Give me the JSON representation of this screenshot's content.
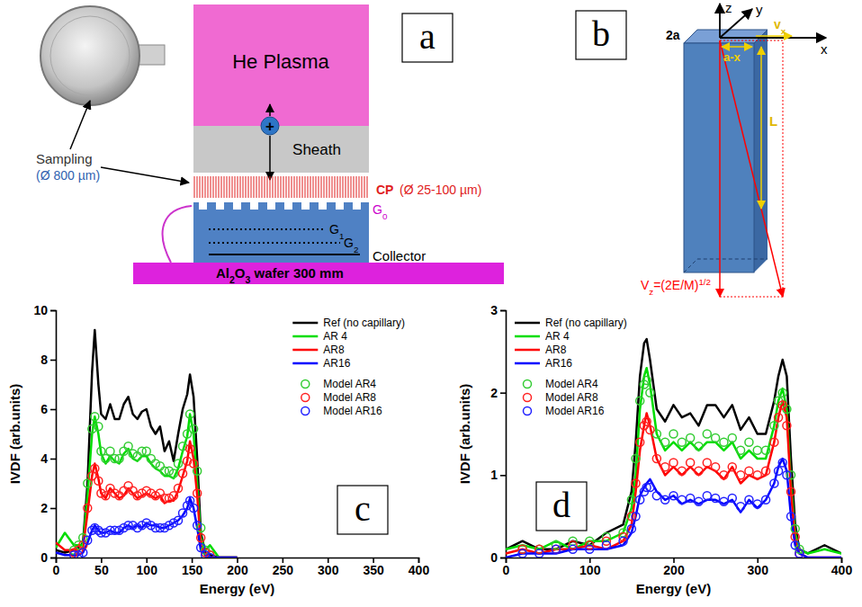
{
  "chart_data": [
    {
      "type": "line",
      "panel": "c",
      "xlabel": "Energy (eV)",
      "ylabel": "IVDF (arb.units)",
      "xlim": [
        0,
        400
      ],
      "xticks": [
        0,
        50,
        100,
        150,
        200,
        250,
        300,
        350,
        400
      ],
      "ylim": [
        0,
        10
      ],
      "yticks": [
        0,
        2,
        4,
        6,
        8,
        10
      ],
      "grid": false,
      "legend": "upper right",
      "x": [
        0,
        10,
        20,
        25,
        30,
        35,
        40,
        43,
        47,
        50,
        55,
        60,
        65,
        70,
        75,
        80,
        85,
        90,
        95,
        100,
        105,
        110,
        115,
        120,
        125,
        130,
        135,
        140,
        145,
        148,
        152,
        156,
        160,
        165,
        170,
        180,
        200
      ],
      "series": [
        {
          "name": "Ref (no capillary)",
          "type": "line",
          "line_style": "solid",
          "color": "#000000",
          "values": [
            0.3,
            0.2,
            0.3,
            0.4,
            0.6,
            3.0,
            7.5,
            9.2,
            7.0,
            5.8,
            5.6,
            6.2,
            5.6,
            5.6,
            6.2,
            6.5,
            5.8,
            5.6,
            5.9,
            6.0,
            5.3,
            5.0,
            5.3,
            4.3,
            4.7,
            3.9,
            5.0,
            6.0,
            6.6,
            7.4,
            6.5,
            4.0,
            1.0,
            0.2,
            0.1,
            0,
            0
          ]
        },
        {
          "name": "AR 4",
          "type": "line",
          "line_style": "solid",
          "color": "#00dd00",
          "values": [
            0.4,
            1.0,
            0.5,
            0.5,
            0.5,
            2.5,
            5.0,
            5.7,
            5.0,
            4.2,
            3.8,
            4.1,
            3.9,
            3.8,
            4.2,
            4.4,
            4.0,
            3.9,
            4.1,
            4.1,
            3.8,
            3.6,
            3.5,
            3.3,
            3.3,
            3.2,
            3.6,
            4.3,
            4.9,
            5.8,
            5.0,
            3.0,
            0.8,
            0.3,
            0.5,
            0,
            0
          ]
        },
        {
          "name": "AR8",
          "type": "line",
          "line_style": "solid",
          "color": "#ff0000",
          "values": [
            0.6,
            0.3,
            0.3,
            0.3,
            0.4,
            1.8,
            3.3,
            3.8,
            3.2,
            2.6,
            2.4,
            2.8,
            2.6,
            2.4,
            2.5,
            2.8,
            2.6,
            2.4,
            2.5,
            2.6,
            2.5,
            2.4,
            2.5,
            2.2,
            2.3,
            2.3,
            2.7,
            3.3,
            3.9,
            4.7,
            4.0,
            2.5,
            0.5,
            0.1,
            0,
            0,
            0
          ]
        },
        {
          "name": "AR16",
          "type": "line",
          "line_style": "solid",
          "color": "#0000ff",
          "values": [
            0.2,
            0.1,
            0.1,
            0.1,
            0.2,
            0.6,
            1.1,
            1.3,
            1.1,
            1.0,
            1.0,
            1.1,
            1.0,
            1.0,
            1.2,
            1.3,
            1.2,
            1.3,
            1.2,
            1.4,
            1.3,
            1.3,
            1.2,
            1.2,
            1.3,
            1.4,
            1.5,
            1.7,
            2.0,
            2.4,
            2.0,
            1.2,
            0.3,
            0.1,
            0,
            0,
            0
          ]
        },
        {
          "name": "Model AR4",
          "type": "scatter",
          "marker": "circle",
          "color": "#33cc33",
          "values": [
            null,
            null,
            0.3,
            0.5,
            0.8,
            3.0,
            5.2,
            5.7,
            5.3,
            4.3,
            4.0,
            4.3,
            4.0,
            4.0,
            4.3,
            4.5,
            4.2,
            4.1,
            4.3,
            4.3,
            4.0,
            3.8,
            3.7,
            3.5,
            3.5,
            3.4,
            3.8,
            4.5,
            5.0,
            5.8,
            5.2,
            3.5,
            1.2,
            0.3,
            0.1,
            null,
            null
          ]
        },
        {
          "name": "Model AR8",
          "type": "scatter",
          "marker": "circle",
          "color": "#ff2020",
          "values": [
            null,
            null,
            0.2,
            0.3,
            0.5,
            2.0,
            3.3,
            3.6,
            3.1,
            2.6,
            2.5,
            2.8,
            2.6,
            2.5,
            2.7,
            2.9,
            2.7,
            2.5,
            2.6,
            2.7,
            2.6,
            2.5,
            2.6,
            2.4,
            2.4,
            2.5,
            2.8,
            3.4,
            3.9,
            4.4,
            3.8,
            2.6,
            0.8,
            0.2,
            0.1,
            null,
            null
          ]
        },
        {
          "name": "Model AR16",
          "type": "scatter",
          "marker": "circle",
          "color": "#2020ff",
          "values": [
            null,
            null,
            0.1,
            0.1,
            0.2,
            0.7,
            1.1,
            1.2,
            1.1,
            1.0,
            1.0,
            1.1,
            1.1,
            1.1,
            1.2,
            1.3,
            1.3,
            1.2,
            1.3,
            1.4,
            1.3,
            1.2,
            1.2,
            1.2,
            1.3,
            1.4,
            1.5,
            1.8,
            2.1,
            2.3,
            2.0,
            1.3,
            0.4,
            0.1,
            0,
            null,
            null
          ]
        }
      ]
    },
    {
      "type": "line",
      "panel": "d",
      "xlabel": "Energy (eV)",
      "ylabel": "IVDF (arb.units)",
      "xlim": [
        0,
        400
      ],
      "xticks": [
        0,
        100,
        200,
        300,
        400
      ],
      "ylim": [
        0,
        3
      ],
      "yticks": [
        0,
        1,
        2,
        3
      ],
      "grid": false,
      "legend": "upper left",
      "x": [
        0,
        20,
        40,
        60,
        80,
        100,
        120,
        140,
        150,
        155,
        160,
        165,
        168,
        172,
        180,
        190,
        200,
        210,
        220,
        230,
        240,
        250,
        260,
        270,
        280,
        290,
        300,
        310,
        320,
        325,
        330,
        335,
        340,
        345,
        350,
        360,
        380,
        400
      ],
      "series": [
        {
          "name": "Ref (no capillary)",
          "type": "line",
          "line_style": "solid",
          "color": "#000000",
          "values": [
            0.1,
            0.2,
            0.1,
            0.1,
            0.2,
            0.15,
            0.3,
            0.4,
            0.8,
            1.4,
            2.2,
            2.6,
            2.65,
            2.4,
            1.8,
            1.65,
            1.85,
            1.7,
            1.75,
            1.6,
            1.85,
            1.85,
            1.7,
            1.85,
            1.55,
            1.7,
            1.5,
            1.5,
            1.9,
            2.2,
            2.4,
            2.2,
            1.2,
            0.4,
            0.1,
            0.05,
            0.15,
            0.05
          ]
        },
        {
          "name": "AR 4",
          "type": "line",
          "line_style": "solid",
          "color": "#00dd00",
          "values": [
            0.1,
            0.15,
            0.1,
            0.2,
            0.1,
            0.2,
            0.2,
            0.3,
            0.6,
            1.0,
            1.8,
            2.2,
            2.3,
            2.1,
            1.5,
            1.3,
            1.4,
            1.3,
            1.4,
            1.3,
            1.4,
            1.4,
            1.3,
            1.4,
            1.2,
            1.3,
            1.2,
            1.2,
            1.6,
            1.9,
            2.05,
            1.8,
            0.9,
            0.3,
            0.1,
            0.05,
            0.1,
            0.05
          ]
        },
        {
          "name": "AR8",
          "type": "line",
          "line_style": "solid",
          "color": "#ff0000",
          "values": [
            0.05,
            0.1,
            0.05,
            0.1,
            0.1,
            0.15,
            0.1,
            0.2,
            0.4,
            0.8,
            1.3,
            1.6,
            1.75,
            1.6,
            1.2,
            1.0,
            1.1,
            1.0,
            1.1,
            1.0,
            1.1,
            1.05,
            0.95,
            1.1,
            0.9,
            1.0,
            0.95,
            1.0,
            1.4,
            1.7,
            1.9,
            1.7,
            0.8,
            0.2,
            0.05,
            0,
            0,
            0
          ]
        },
        {
          "name": "AR16",
          "type": "line",
          "line_style": "solid",
          "color": "#0000ff",
          "values": [
            0,
            0.05,
            0.05,
            0.05,
            0.1,
            0.1,
            0.1,
            0.15,
            0.3,
            0.5,
            0.75,
            0.85,
            0.9,
            0.95,
            0.8,
            0.7,
            0.75,
            0.65,
            0.7,
            0.65,
            0.7,
            0.7,
            0.65,
            0.7,
            0.55,
            0.7,
            0.6,
            0.7,
            0.9,
            1.1,
            1.2,
            1.05,
            0.5,
            0.15,
            0.05,
            0,
            0,
            0
          ]
        },
        {
          "name": "Model AR4",
          "type": "scatter",
          "marker": "circle",
          "color": "#33cc33",
          "values": [
            null,
            0.1,
            0.1,
            0.15,
            0.2,
            0.2,
            0.25,
            0.3,
            0.7,
            1.2,
            1.9,
            2.1,
            2.15,
            2.0,
            1.5,
            1.4,
            1.5,
            1.4,
            1.45,
            1.35,
            1.5,
            1.45,
            1.4,
            1.45,
            1.3,
            1.4,
            1.3,
            1.3,
            1.6,
            1.9,
            2.0,
            1.8,
            1.0,
            0.35,
            0.1,
            null,
            null,
            null
          ]
        },
        {
          "name": "Model AR8",
          "type": "scatter",
          "marker": "circle",
          "color": "#ff2020",
          "values": [
            null,
            0.1,
            0.1,
            0.1,
            0.15,
            0.15,
            0.2,
            0.25,
            0.5,
            0.9,
            1.4,
            1.6,
            1.65,
            1.55,
            1.2,
            1.1,
            1.15,
            1.05,
            1.15,
            1.05,
            1.15,
            1.1,
            1.0,
            1.1,
            1.0,
            1.05,
            1.0,
            1.05,
            1.4,
            1.7,
            1.85,
            1.6,
            0.8,
            0.25,
            0.05,
            null,
            null,
            null
          ]
        },
        {
          "name": "Model AR16",
          "type": "scatter",
          "marker": "circle",
          "color": "#2020ff",
          "values": [
            null,
            0.05,
            0.05,
            0.1,
            0.1,
            0.1,
            0.15,
            0.2,
            0.35,
            0.5,
            0.7,
            0.8,
            0.85,
            0.85,
            0.75,
            0.7,
            0.75,
            0.7,
            0.72,
            0.68,
            0.75,
            0.72,
            0.68,
            0.72,
            0.62,
            0.7,
            0.65,
            0.7,
            0.9,
            1.05,
            1.15,
            1.0,
            0.5,
            0.15,
            0.05,
            null,
            null,
            null
          ]
        }
      ]
    }
  ],
  "diagram_a": {
    "letter": "a",
    "plasma": "He Plasma",
    "sheath": "Sheath",
    "ion": "+",
    "sampling": "Sampling",
    "sampling_size": "(Ø 800 µm)",
    "cp": "CP",
    "cp_size": "(Ø 25-100 µm)",
    "g0": [
      {
        "text": "G"
      },
      {
        "text": "0",
        "sub": true
      }
    ],
    "g1": [
      {
        "text": "G"
      },
      {
        "text": "1",
        "sub": true
      }
    ],
    "g2": [
      {
        "text": "G"
      },
      {
        "text": "2",
        "sub": true
      }
    ],
    "collector": "Collector",
    "wafer": [
      {
        "text": "Al"
      },
      {
        "text": "2",
        "sub": true
      },
      {
        "text": "O"
      },
      {
        "text": "3",
        "sub": true
      },
      {
        "text": " wafer 300 mm"
      }
    ]
  },
  "diagram_b": {
    "letter": "b",
    "z": "z",
    "y": "y",
    "x": "x",
    "vx": [
      {
        "text": "v"
      },
      {
        "text": "x",
        "sub": true
      }
    ],
    "width": "2a",
    "offset": "a-x",
    "length": "L",
    "vz": [
      {
        "text": "V"
      },
      {
        "text": "z",
        "sub": true
      },
      {
        "text": "=(2E/M)"
      },
      {
        "text": "1/2",
        "sup": true
      }
    ]
  }
}
